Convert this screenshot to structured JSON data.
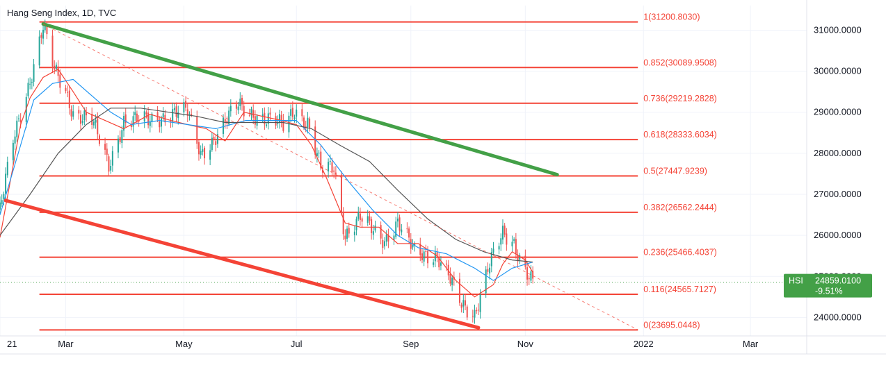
{
  "chart_data": {
    "type": "candlestick",
    "title": "Hang Seng Index, 1D, TVC",
    "price_axis": {
      "ticks": [
        {
          "label": "31000.0000",
          "value": 31000
        },
        {
          "label": "30000.0000",
          "value": 30000
        },
        {
          "label": "29000.0000",
          "value": 29000
        },
        {
          "label": "28000.0000",
          "value": 28000
        },
        {
          "label": "27000.0000",
          "value": 27000
        },
        {
          "label": "26000.0000",
          "value": 26000
        },
        {
          "label": "25000.0000",
          "value": 25000
        },
        {
          "label": "24000.0000",
          "value": 24000
        }
      ],
      "range": [
        23550,
        31600
      ]
    },
    "time_axis": {
      "ticks": [
        {
          "label": "21",
          "date": "2021-01-25"
        },
        {
          "label": "Mar",
          "date": "2021-03-01"
        },
        {
          "label": "May",
          "date": "2021-05-03"
        },
        {
          "label": "Jul",
          "date": "2021-07-02"
        },
        {
          "label": "Sep",
          "date": "2021-09-01"
        },
        {
          "label": "Nov",
          "date": "2021-11-01"
        },
        {
          "label": "2022",
          "date": "2022-01-03"
        },
        {
          "label": "Mar",
          "date": "2022-03-01"
        }
      ],
      "range": [
        "2021-01-25",
        "2022-03-31"
      ]
    },
    "fibonacci_levels": [
      {
        "label": "1(31200.8030)",
        "ratio": 1,
        "price": 31200.803
      },
      {
        "label": "0.852(30089.9508)",
        "ratio": 0.852,
        "price": 30089.9508
      },
      {
        "label": "0.736(29219.2828)",
        "ratio": 0.736,
        "price": 29219.2828
      },
      {
        "label": "0.618(28333.6034)",
        "ratio": 0.618,
        "price": 28333.6034
      },
      {
        "label": "0.5(27447.9239)",
        "ratio": 0.5,
        "price": 27447.9239
      },
      {
        "label": "0.382(26562.2444)",
        "ratio": 0.382,
        "price": 26562.2444
      },
      {
        "label": "0.236(25466.4037)",
        "ratio": 0.236,
        "price": 25466.4037
      },
      {
        "label": "0.116(24565.7127)",
        "ratio": 0.116,
        "price": 24565.7127
      },
      {
        "label": "0(23695.0448)",
        "ratio": 0,
        "price": 23695.0448
      }
    ],
    "fib_range": {
      "start": "2021-02-15",
      "end": "2021-12-31"
    },
    "trendlines": [
      {
        "color": "#43a047",
        "style": "solid",
        "points": [
          {
            "date": "2021-02-17",
            "price": 31150
          },
          {
            "date": "2021-11-18",
            "price": 27480
          }
        ]
      },
      {
        "color": "#f44336",
        "style": "solid",
        "points": [
          {
            "date": "2021-01-28",
            "price": 26850
          },
          {
            "date": "2021-10-07",
            "price": 23750
          }
        ]
      },
      {
        "color": "#f44336",
        "style": "dashed",
        "points": [
          {
            "date": "2021-02-17",
            "price": 31150
          },
          {
            "date": "2021-12-31",
            "price": 23700
          }
        ]
      }
    ],
    "moving_averages": [
      {
        "color": "#f44336",
        "points": [
          [
            "2021-01-25",
            25950
          ],
          [
            "2021-02-05",
            28700
          ],
          [
            "2021-02-10",
            29350
          ],
          [
            "2021-02-17",
            29850
          ],
          [
            "2021-02-25",
            30050
          ],
          [
            "2021-03-05",
            29500
          ],
          [
            "2021-03-12",
            29000
          ],
          [
            "2021-03-22",
            28800
          ],
          [
            "2021-04-01",
            28600
          ],
          [
            "2021-04-15",
            28950
          ],
          [
            "2021-04-26",
            28800
          ],
          [
            "2021-05-05",
            28700
          ],
          [
            "2021-05-15",
            28600
          ],
          [
            "2021-05-25",
            28300
          ],
          [
            "2021-06-04",
            29000
          ],
          [
            "2021-06-14",
            28900
          ],
          [
            "2021-06-24",
            28800
          ],
          [
            "2021-07-02",
            28700
          ],
          [
            "2021-07-10",
            28200
          ],
          [
            "2021-07-18",
            27400
          ],
          [
            "2021-07-28",
            26300
          ],
          [
            "2021-08-05",
            26200
          ],
          [
            "2021-08-15",
            26200
          ],
          [
            "2021-08-25",
            25800
          ],
          [
            "2021-09-05",
            25800
          ],
          [
            "2021-09-15",
            25500
          ],
          [
            "2021-09-25",
            24900
          ],
          [
            "2021-10-05",
            24500
          ],
          [
            "2021-10-15",
            24800
          ],
          [
            "2021-10-20",
            25300
          ],
          [
            "2021-10-25",
            25600
          ],
          [
            "2021-11-01",
            25400
          ],
          [
            "2021-11-05",
            25100
          ]
        ]
      },
      {
        "color": "#2196f3",
        "points": [
          [
            "2021-01-25",
            26500
          ],
          [
            "2021-02-05",
            28200
          ],
          [
            "2021-02-12",
            29300
          ],
          [
            "2021-02-22",
            29700
          ],
          [
            "2021-03-05",
            29800
          ],
          [
            "2021-03-15",
            29400
          ],
          [
            "2021-03-25",
            29000
          ],
          [
            "2021-04-05",
            28700
          ],
          [
            "2021-04-20",
            28800
          ],
          [
            "2021-05-05",
            28700
          ],
          [
            "2021-05-20",
            28600
          ],
          [
            "2021-06-05",
            28800
          ],
          [
            "2021-06-20",
            28800
          ],
          [
            "2021-07-02",
            28800
          ],
          [
            "2021-07-15",
            28200
          ],
          [
            "2021-07-30",
            27300
          ],
          [
            "2021-08-12",
            26600
          ],
          [
            "2021-08-25",
            26000
          ],
          [
            "2021-09-05",
            25700
          ],
          [
            "2021-09-20",
            25550
          ],
          [
            "2021-10-05",
            25200
          ],
          [
            "2021-10-15",
            24900
          ],
          [
            "2021-10-25",
            25200
          ],
          [
            "2021-11-05",
            25350
          ]
        ]
      },
      {
        "color": "#555555",
        "points": [
          [
            "2021-01-25",
            26000
          ],
          [
            "2021-02-10",
            27000
          ],
          [
            "2021-02-25",
            28000
          ],
          [
            "2021-03-12",
            28700
          ],
          [
            "2021-03-25",
            29100
          ],
          [
            "2021-04-10",
            29100
          ],
          [
            "2021-04-25",
            29000
          ],
          [
            "2021-05-10",
            28900
          ],
          [
            "2021-05-25",
            28750
          ],
          [
            "2021-06-10",
            28750
          ],
          [
            "2021-06-25",
            28750
          ],
          [
            "2021-07-10",
            28600
          ],
          [
            "2021-07-25",
            28200
          ],
          [
            "2021-08-10",
            27800
          ],
          [
            "2021-08-25",
            27100
          ],
          [
            "2021-09-10",
            26400
          ],
          [
            "2021-09-25",
            25900
          ],
          [
            "2021-10-10",
            25600
          ],
          [
            "2021-10-25",
            25400
          ],
          [
            "2021-11-05",
            25350
          ]
        ]
      }
    ],
    "price_path": [
      [
        "2021-01-25",
        26600
      ],
      [
        "2021-02-01",
        28300
      ],
      [
        "2021-02-10",
        29800
      ],
      [
        "2021-02-17",
        31100
      ],
      [
        "2021-02-23",
        30000
      ],
      [
        "2021-03-01",
        29500
      ],
      [
        "2021-03-05",
        29000
      ],
      [
        "2021-03-15",
        28800
      ],
      [
        "2021-03-24",
        27700
      ],
      [
        "2021-04-01",
        28800
      ],
      [
        "2021-04-15",
        28800
      ],
      [
        "2021-04-28",
        29000
      ],
      [
        "2021-05-05",
        29000
      ],
      [
        "2021-05-12",
        28000
      ],
      [
        "2021-05-20",
        28400
      ],
      [
        "2021-06-01",
        29200
      ],
      [
        "2021-06-15",
        28800
      ],
      [
        "2021-06-25",
        28700
      ],
      [
        "2021-07-01",
        29100
      ],
      [
        "2021-07-08",
        28700
      ],
      [
        "2021-07-15",
        27600
      ],
      [
        "2021-07-22",
        27700
      ],
      [
        "2021-07-28",
        26000
      ],
      [
        "2021-08-05",
        26400
      ],
      [
        "2021-08-18",
        25900
      ],
      [
        "2021-08-25",
        26300
      ],
      [
        "2021-09-03",
        25600
      ],
      [
        "2021-09-15",
        25500
      ],
      [
        "2021-09-21",
        25000
      ],
      [
        "2021-09-28",
        24300
      ],
      [
        "2021-10-05",
        24100
      ],
      [
        "2021-10-12",
        25200
      ],
      [
        "2021-10-20",
        26000
      ],
      [
        "2021-10-26",
        25800
      ],
      [
        "2021-11-01",
        25200
      ],
      [
        "2021-11-05",
        24870
      ]
    ],
    "last_price": {
      "symbol": "HSI",
      "value": "24859.0100",
      "change": "-9.51%",
      "price": 24859.01,
      "color": "#43a047"
    }
  }
}
